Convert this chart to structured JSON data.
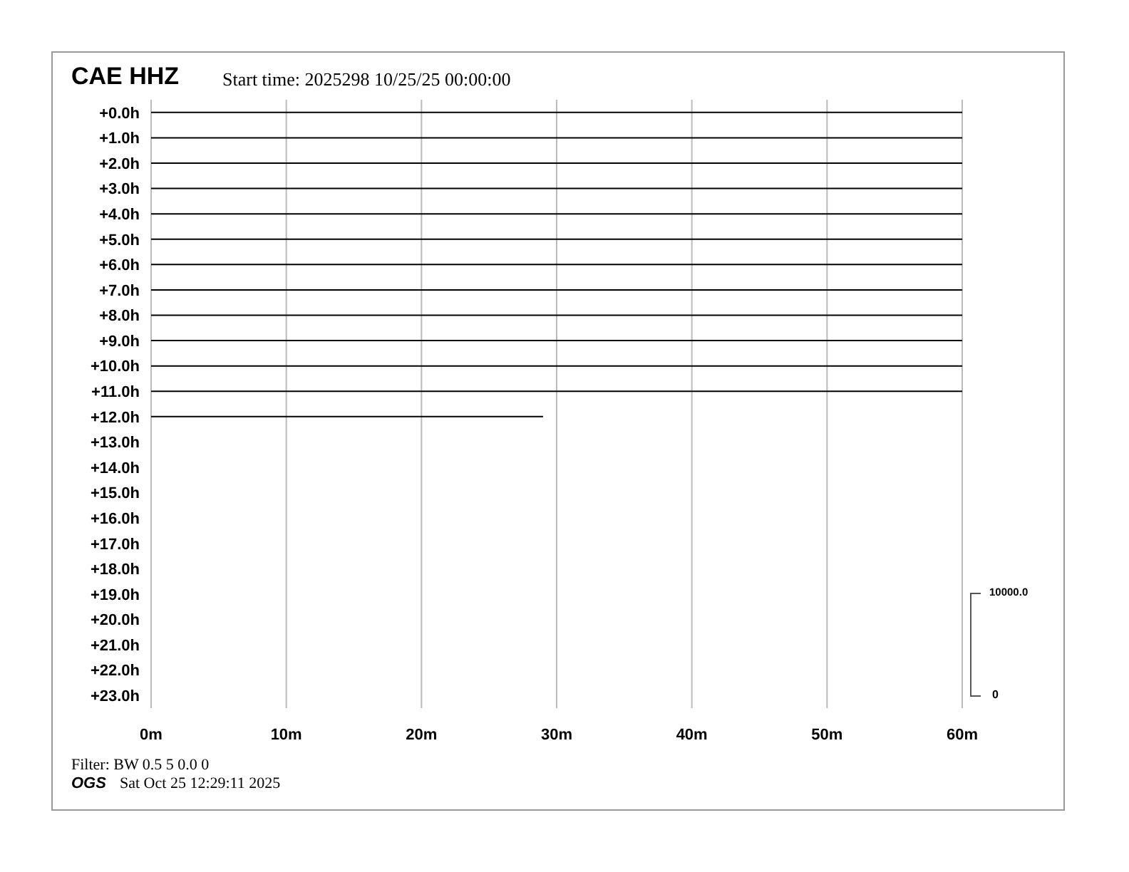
{
  "chart_data": {
    "type": "line",
    "title": "CAE HHZ",
    "subtitle": "Start time: 2025298 10/25/25 00:00:00",
    "xlim": [
      0,
      60
    ],
    "xticks": [
      {
        "value": 0,
        "label": "0m"
      },
      {
        "value": 10,
        "label": "10m"
      },
      {
        "value": 20,
        "label": "20m"
      },
      {
        "value": 30,
        "label": "30m"
      },
      {
        "value": 40,
        "label": "40m"
      },
      {
        "value": 50,
        "label": "50m"
      },
      {
        "value": 60,
        "label": "60m"
      }
    ],
    "ylim": [
      23.5,
      -0.5
    ],
    "yticks": [
      {
        "value": 0,
        "label": "+0.0h"
      },
      {
        "value": 1,
        "label": "+1.0h"
      },
      {
        "value": 2,
        "label": "+2.0h"
      },
      {
        "value": 3,
        "label": "+3.0h"
      },
      {
        "value": 4,
        "label": "+4.0h"
      },
      {
        "value": 5,
        "label": "+5.0h"
      },
      {
        "value": 6,
        "label": "+6.0h"
      },
      {
        "value": 7,
        "label": "+7.0h"
      },
      {
        "value": 8,
        "label": "+8.0h"
      },
      {
        "value": 9,
        "label": "+9.0h"
      },
      {
        "value": 10,
        "label": "+10.0h"
      },
      {
        "value": 11,
        "label": "+11.0h"
      },
      {
        "value": 12,
        "label": "+12.0h"
      },
      {
        "value": 13,
        "label": "+13.0h"
      },
      {
        "value": 14,
        "label": "+14.0h"
      },
      {
        "value": 15,
        "label": "+15.0h"
      },
      {
        "value": 16,
        "label": "+16.0h"
      },
      {
        "value": 17,
        "label": "+17.0h"
      },
      {
        "value": 18,
        "label": "+18.0h"
      },
      {
        "value": 19,
        "label": "+19.0h"
      },
      {
        "value": 20,
        "label": "+20.0h"
      },
      {
        "value": 21,
        "label": "+21.0h"
      },
      {
        "value": 22,
        "label": "+22.0h"
      },
      {
        "value": 23,
        "label": "+23.0h"
      }
    ],
    "grid": "x",
    "marker": "none",
    "line_style": "solid",
    "series": [
      {
        "color": "#000000",
        "x": [
          0,
          60
        ],
        "values": [
          0,
          0
        ]
      },
      {
        "color": "#000000",
        "x": [
          0,
          60
        ],
        "values": [
          1,
          1
        ]
      },
      {
        "color": "#000000",
        "x": [
          0,
          60
        ],
        "values": [
          2,
          2
        ]
      },
      {
        "color": "#000000",
        "x": [
          0,
          60
        ],
        "values": [
          3,
          3
        ]
      },
      {
        "color": "#000000",
        "x": [
          0,
          60
        ],
        "values": [
          4,
          4
        ]
      },
      {
        "color": "#000000",
        "x": [
          0,
          60
        ],
        "values": [
          5,
          5
        ]
      },
      {
        "color": "#000000",
        "x": [
          0,
          60
        ],
        "values": [
          6,
          6
        ]
      },
      {
        "color": "#000000",
        "x": [
          0,
          60
        ],
        "values": [
          7,
          7
        ]
      },
      {
        "color": "#000000",
        "x": [
          0,
          60
        ],
        "values": [
          8,
          8
        ]
      },
      {
        "color": "#000000",
        "x": [
          0,
          60
        ],
        "values": [
          9,
          9
        ]
      },
      {
        "color": "#000000",
        "x": [
          0,
          60
        ],
        "values": [
          10,
          10
        ]
      },
      {
        "color": "#000000",
        "x": [
          0,
          60
        ],
        "values": [
          11,
          11
        ]
      },
      {
        "color": "#000000",
        "x": [
          0,
          29
        ],
        "values": [
          12,
          12
        ]
      }
    ],
    "annotations": [
      "10000.0",
      "0",
      "Filter: BW 0.5 5 0.0 0",
      "OGS",
      "Sat Oct 25 12:29:11 2025"
    ]
  }
}
